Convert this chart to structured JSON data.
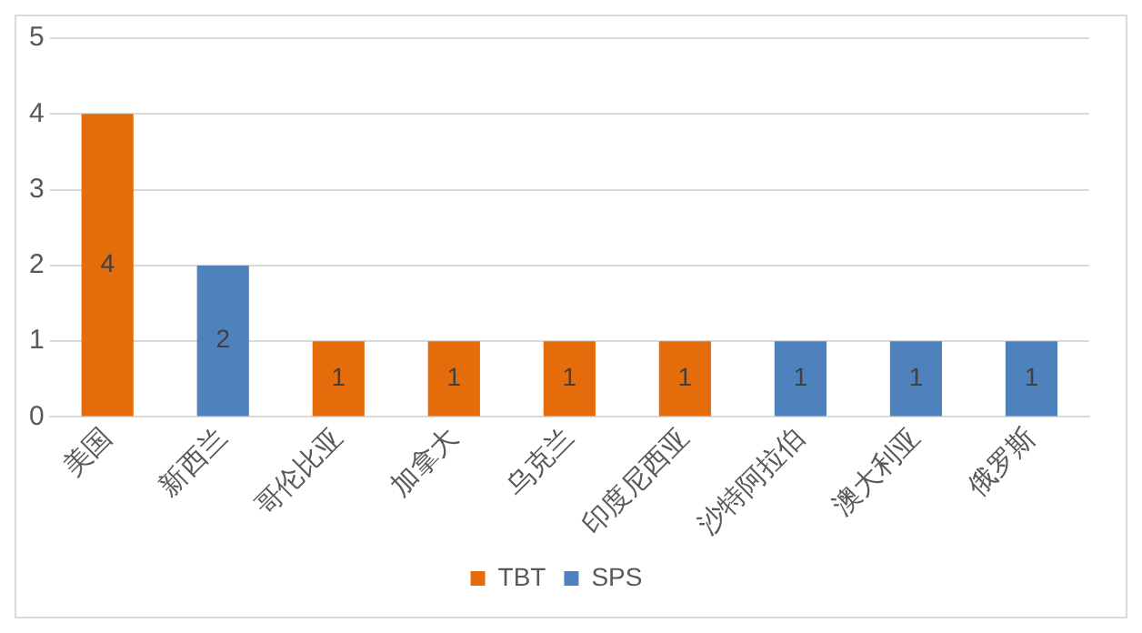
{
  "chart_data": {
    "type": "bar",
    "categories": [
      "美国",
      "新西兰",
      "哥伦比亚",
      "加拿大",
      "乌克兰",
      "印度尼西亚",
      "沙特阿拉伯",
      "澳大利亚",
      "俄罗斯"
    ],
    "series": [
      {
        "name": "TBT",
        "color": "#e46c0a",
        "values": [
          4,
          null,
          1,
          1,
          1,
          1,
          null,
          null,
          null
        ]
      },
      {
        "name": "SPS",
        "color": "#4f81bd",
        "values": [
          null,
          2,
          null,
          null,
          null,
          null,
          1,
          1,
          1
        ]
      }
    ],
    "ylim": [
      0,
      5
    ],
    "yticks": [
      0,
      1,
      2,
      3,
      4,
      5
    ],
    "grid": "y",
    "legend": "bottom",
    "data_labels": true
  }
}
